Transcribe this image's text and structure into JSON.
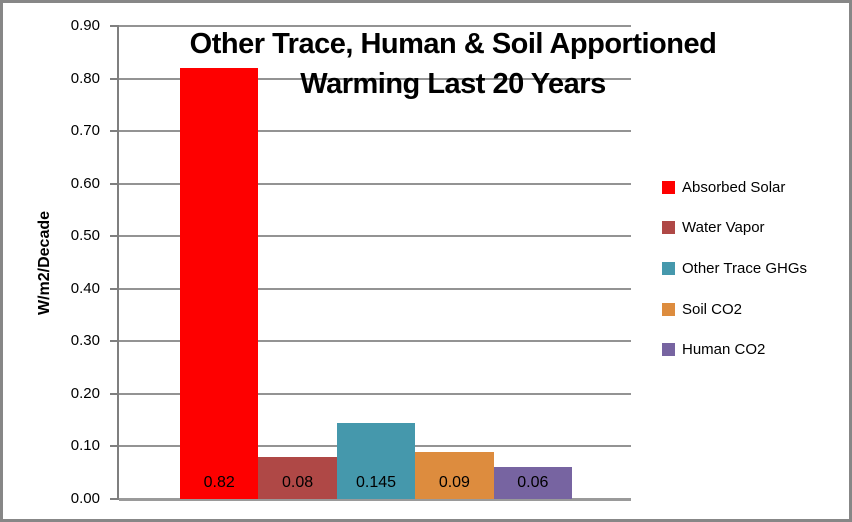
{
  "chart": {
    "title_line1": "Other Trace, Human & Soil Apportioned",
    "title_line2": "Warming Last 20 Years"
  },
  "chart_data": {
    "type": "bar",
    "title": "Other Trace, Human & Soil Apportioned Warming Last 20 Years",
    "xlabel": "",
    "ylabel": "W/m2/Decade",
    "ylim": [
      0.0,
      0.9
    ],
    "ytick_interval": 0.1,
    "y_tick_labels": [
      "0.90",
      "0.80",
      "0.70",
      "0.60",
      "0.50",
      "0.40",
      "0.30",
      "0.20",
      "0.10",
      "0.00"
    ],
    "grid": true,
    "legend_position": "right",
    "data_labels_shown": true,
    "series": [
      {
        "name": "Absorbed Solar",
        "value": 0.82,
        "label": "0.82",
        "color": "#fe0000"
      },
      {
        "name": "Water Vapor",
        "value": 0.08,
        "label": "0.08",
        "color": "#af4846"
      },
      {
        "name": "Other Trace GHGs",
        "value": 0.145,
        "label": "0.145",
        "color": "#4598ac"
      },
      {
        "name": "Soil CO2",
        "value": 0.09,
        "label": "0.09",
        "color": "#dd8c3e"
      },
      {
        "name": "Human CO2",
        "value": 0.06,
        "label": "0.06",
        "color": "#7764a1"
      }
    ],
    "colors": {
      "gridline": "#939393",
      "axis_line": "#7f7f7f",
      "title_text": "#000000",
      "frame_border": "#878787"
    }
  }
}
